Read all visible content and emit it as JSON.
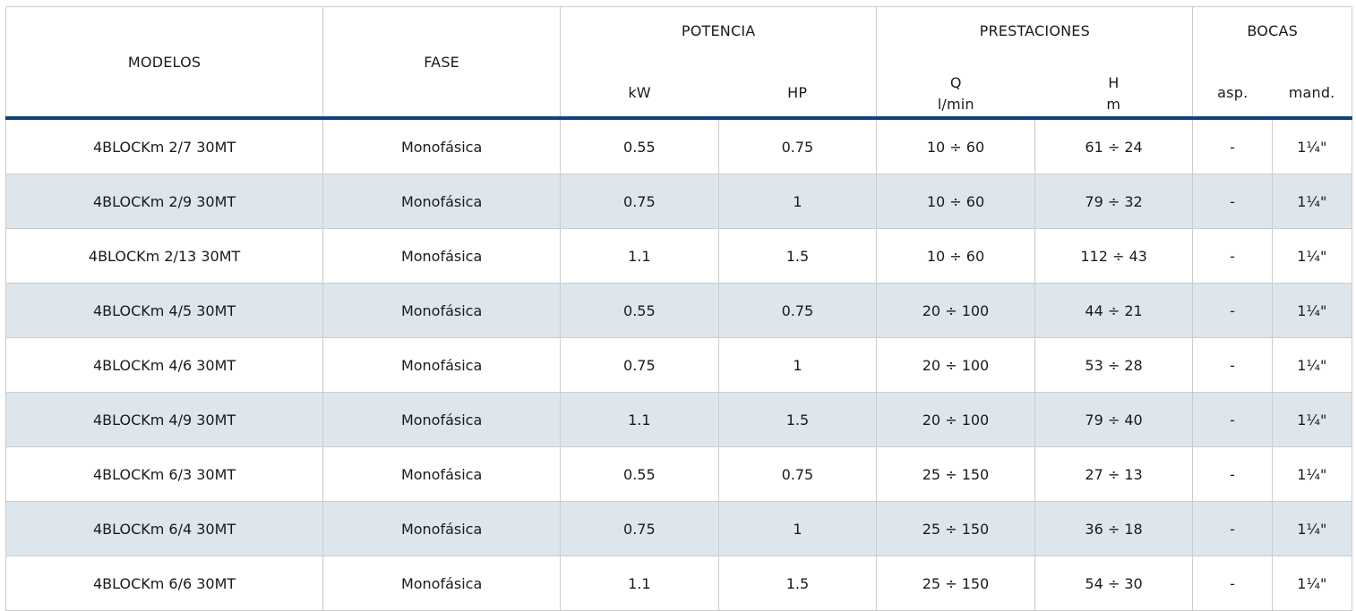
{
  "headers": {
    "modelos": "MODELOS",
    "fase": "FASE",
    "potencia": "POTENCIA",
    "kw": "kW",
    "hp": "HP",
    "prestaciones": "PRESTACIONES",
    "q": "Q",
    "q_unit": "l/min",
    "h": "H",
    "h_unit": "m",
    "bocas": "BOCAS",
    "asp": "asp.",
    "mand": "mand."
  },
  "rows": [
    {
      "modelo": "4BLOCKm 2/7 30MT",
      "fase": "Monofásica",
      "kw": "0.55",
      "hp": "0.75",
      "q": "10 ÷ 60",
      "h": "61 ÷ 24",
      "asp": "-",
      "mand": "1¼\""
    },
    {
      "modelo": "4BLOCKm 2/9 30MT",
      "fase": "Monofásica",
      "kw": "0.75",
      "hp": "1",
      "q": "10 ÷ 60",
      "h": "79 ÷ 32",
      "asp": "-",
      "mand": "1¼\""
    },
    {
      "modelo": "4BLOCKm 2/13 30MT",
      "fase": "Monofásica",
      "kw": "1.1",
      "hp": "1.5",
      "q": "10 ÷ 60",
      "h": "112 ÷ 43",
      "asp": "-",
      "mand": "1¼\""
    },
    {
      "modelo": "4BLOCKm 4/5 30MT",
      "fase": "Monofásica",
      "kw": "0.55",
      "hp": "0.75",
      "q": "20 ÷ 100",
      "h": "44 ÷ 21",
      "asp": "-",
      "mand": "1¼\""
    },
    {
      "modelo": "4BLOCKm 4/6 30MT",
      "fase": "Monofásica",
      "kw": "0.75",
      "hp": "1",
      "q": "20 ÷ 100",
      "h": "53 ÷ 28",
      "asp": "-",
      "mand": "1¼\""
    },
    {
      "modelo": "4BLOCKm 4/9 30MT",
      "fase": "Monofásica",
      "kw": "1.1",
      "hp": "1.5",
      "q": "20 ÷ 100",
      "h": "79 ÷ 40",
      "asp": "-",
      "mand": "1¼\""
    },
    {
      "modelo": "4BLOCKm 6/3 30MT",
      "fase": "Monofásica",
      "kw": "0.55",
      "hp": "0.75",
      "q": "25 ÷ 150",
      "h": "27 ÷ 13",
      "asp": "-",
      "mand": "1¼\""
    },
    {
      "modelo": "4BLOCKm 6/4 30MT",
      "fase": "Monofásica",
      "kw": "0.75",
      "hp": "1",
      "q": "25 ÷ 150",
      "h": "36 ÷ 18",
      "asp": "-",
      "mand": "1¼\""
    },
    {
      "modelo": "4BLOCKm 6/6 30MT",
      "fase": "Monofásica",
      "kw": "1.1",
      "hp": "1.5",
      "q": "25 ÷ 150",
      "h": "54 ÷ 30",
      "asp": "-",
      "mand": "1¼\""
    }
  ],
  "colors": {
    "header_rule": "#0c4478",
    "alt_row": "#dde6ec",
    "grid": "#cccccc"
  }
}
